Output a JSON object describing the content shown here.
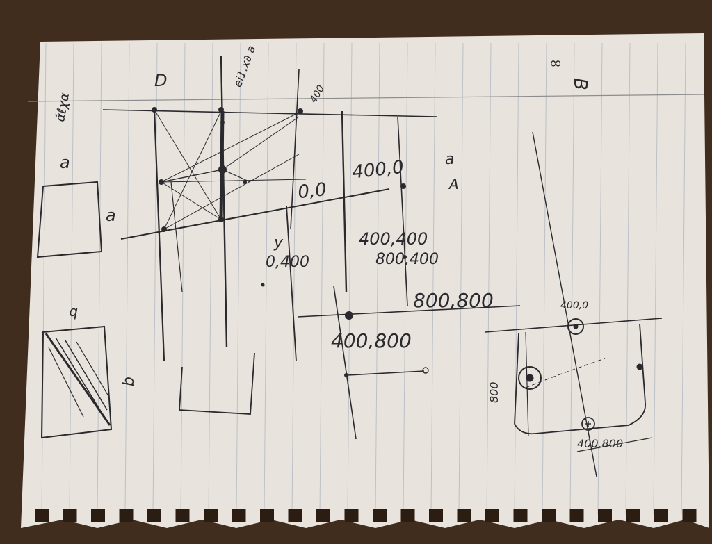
{
  "colors": {
    "table": "#4a3524",
    "paper": "#e8e3dc",
    "rule": "#9aa7b6",
    "ink": "#2a2a2e"
  },
  "labels": {
    "corner_note": "ᾰℓχα",
    "letter_a_1": "a",
    "letter_a_2": "a",
    "letter_b_1": "b",
    "letter_b_2": "b",
    "section_d": "D",
    "section_b": "B",
    "top_scribble": "ei1.x∂ a",
    "mark_400_top": "400",
    "letter_a_side": "a",
    "letter_a_side2": "A",
    "origin": "0,0",
    "top_right_point": "400,0",
    "y_label": "y",
    "left_point": "0,400",
    "center_point": "400,400",
    "center_point_b": "800,400",
    "bottom_right_point": "800,800",
    "bottom_point": "400,800",
    "right_top_point": "400,0",
    "right_side_label": "800",
    "right_bottom_point": "400,800",
    "infinity_mark": "∞"
  }
}
